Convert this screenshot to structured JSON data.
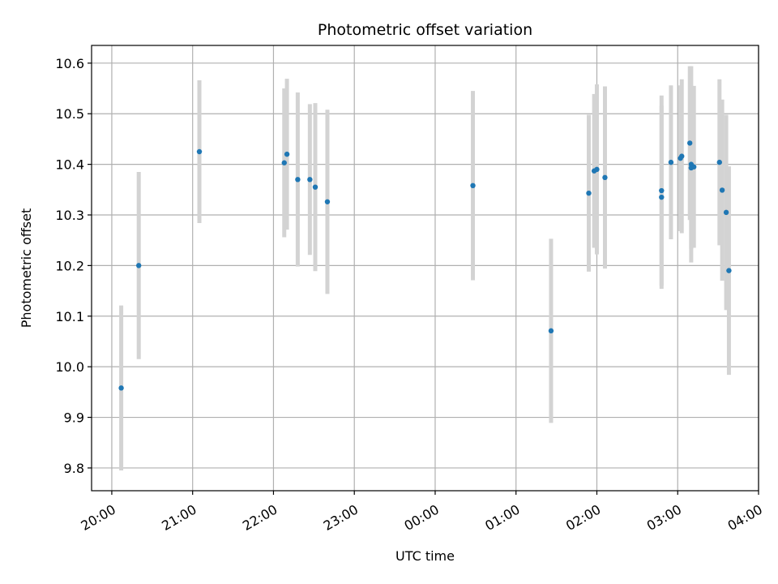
{
  "chart_data": {
    "type": "scatter",
    "title": "Photometric offset variation",
    "xlabel": "UTC time",
    "ylabel": "Photometric offset",
    "x_unit": "UTC time (hours, 20:00 to 04:00 across midnight)",
    "xlim": [
      "19:45",
      "04:00"
    ],
    "ylim": [
      9.755,
      10.635
    ],
    "x_ticks": [
      "20:00",
      "21:00",
      "22:00",
      "23:00",
      "00:00",
      "01:00",
      "02:00",
      "03:00",
      "04:00"
    ],
    "y_ticks": [
      "9.8",
      "9.9",
      "10.0",
      "10.1",
      "10.2",
      "10.3",
      "10.4",
      "10.5",
      "10.6"
    ],
    "grid": true,
    "colors": {
      "points": "#1f77b4",
      "error_bars": "#d3d3d3",
      "grid": "#b0b0b0"
    },
    "points": [
      {
        "x": "20:07",
        "y": 9.958,
        "err": 0.163
      },
      {
        "x": "20:20",
        "y": 10.2,
        "err": 0.185
      },
      {
        "x": "21:05",
        "y": 10.425,
        "err": 0.141
      },
      {
        "x": "22:08",
        "y": 10.403,
        "err": 0.147
      },
      {
        "x": "22:10",
        "y": 10.42,
        "err": 0.149
      },
      {
        "x": "22:18",
        "y": 10.37,
        "err": 0.172
      },
      {
        "x": "22:27",
        "y": 10.37,
        "err": 0.149
      },
      {
        "x": "22:31",
        "y": 10.355,
        "err": 0.166
      },
      {
        "x": "22:40",
        "y": 10.326,
        "err": 0.182
      },
      {
        "x": "00:28",
        "y": 10.358,
        "err": 0.187
      },
      {
        "x": "01:26",
        "y": 10.071,
        "err": 0.182
      },
      {
        "x": "01:54",
        "y": 10.343,
        "err": 0.155
      },
      {
        "x": "01:58",
        "y": 10.387,
        "err": 0.152
      },
      {
        "x": "02:00",
        "y": 10.39,
        "err": 0.168
      },
      {
        "x": "02:06",
        "y": 10.374,
        "err": 0.18
      },
      {
        "x": "02:48",
        "y": 10.335,
        "err": 0.181
      },
      {
        "x": "02:48",
        "y": 10.348,
        "err": 0.188
      },
      {
        "x": "02:55",
        "y": 10.404,
        "err": 0.152
      },
      {
        "x": "03:02",
        "y": 10.412,
        "err": 0.144
      },
      {
        "x": "03:03",
        "y": 10.416,
        "err": 0.152
      },
      {
        "x": "03:09",
        "y": 10.442,
        "err": 0.152
      },
      {
        "x": "03:10",
        "y": 10.393,
        "err": 0.16
      },
      {
        "x": "03:10",
        "y": 10.4,
        "err": 0.194
      },
      {
        "x": "03:12",
        "y": 10.395,
        "err": 0.16
      },
      {
        "x": "03:31",
        "y": 10.404,
        "err": 0.164
      },
      {
        "x": "03:33",
        "y": 10.349,
        "err": 0.179
      },
      {
        "x": "03:36",
        "y": 10.305,
        "err": 0.193
      },
      {
        "x": "03:38",
        "y": 10.19,
        "err": 0.206
      }
    ]
  }
}
